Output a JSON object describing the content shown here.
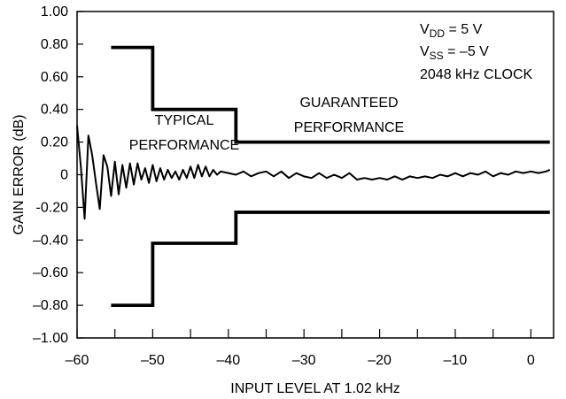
{
  "chart_data": {
    "type": "line",
    "title": "",
    "xlabel": "INPUT LEVEL AT 1.02 kHz",
    "ylabel": "GAIN ERROR (dB)",
    "xlim": [
      -60,
      3
    ],
    "ylim": [
      -1.0,
      1.0
    ],
    "x_ticks": [
      -60,
      -50,
      -40,
      -30,
      -20,
      -10,
      0
    ],
    "x_tick_labels": [
      "–60",
      "–50",
      "–40",
      "–30",
      "–20",
      "–10",
      "0"
    ],
    "x_minor_ticks": [
      -55,
      -45,
      -35,
      -25,
      -15,
      -5
    ],
    "y_ticks": [
      1.0,
      0.8,
      0.6,
      0.4,
      0.2,
      0,
      -0.2,
      -0.4,
      -0.6,
      -0.8,
      -1.0
    ],
    "y_tick_labels": [
      "1.00",
      "0.80",
      "0.60",
      "0.40",
      "0.20",
      "0",
      "-0.20",
      "–0.40",
      "–0.60",
      "–0.80",
      "–1.00"
    ],
    "grid": false,
    "series": [
      {
        "values": [
          [
            -60,
            0.3
          ],
          [
            -59.5,
            0.05
          ],
          [
            -59,
            -0.27
          ],
          [
            -58.5,
            0.24
          ],
          [
            -58,
            0.12
          ],
          [
            -57.5,
            -0.05
          ],
          [
            -57,
            -0.21
          ],
          [
            -56.5,
            0.12
          ],
          [
            -56,
            0.05
          ],
          [
            -55.5,
            -0.13
          ],
          [
            -55,
            0.08
          ],
          [
            -54.5,
            -0.12
          ],
          [
            -54,
            0.06
          ],
          [
            -53.5,
            -0.08
          ],
          [
            -53,
            0.07
          ],
          [
            -52.5,
            -0.06
          ],
          [
            -52,
            0.07
          ],
          [
            -51.5,
            -0.03
          ],
          [
            -51,
            0.04
          ],
          [
            -50.5,
            -0.05
          ],
          [
            -50,
            0.06
          ],
          [
            -49.5,
            -0.04
          ],
          [
            -49,
            0.04
          ],
          [
            -48.5,
            -0.03
          ],
          [
            -48,
            0.03
          ],
          [
            -47.5,
            -0.02
          ],
          [
            -47,
            0.02
          ],
          [
            -46.5,
            -0.03
          ],
          [
            -46,
            0.03
          ],
          [
            -45.5,
            -0.02
          ],
          [
            -45,
            0.05
          ],
          [
            -44.5,
            -0.02
          ],
          [
            -44,
            0.06
          ],
          [
            -43.5,
            -0.01
          ],
          [
            -43,
            0.05
          ],
          [
            -42.5,
            -0.01
          ],
          [
            -42,
            0.03
          ],
          [
            -41.5,
            0.0
          ],
          [
            -41,
            0.02
          ],
          [
            -40,
            0.01
          ],
          [
            -39,
            0.0
          ],
          [
            -38,
            0.02
          ],
          [
            -37,
            -0.01
          ],
          [
            -36,
            0.01
          ],
          [
            -35,
            0.02
          ],
          [
            -34,
            -0.01
          ],
          [
            -33,
            0.02
          ],
          [
            -32,
            -0.02
          ],
          [
            -31,
            0.01
          ],
          [
            -30,
            -0.01
          ],
          [
            -29,
            -0.02
          ],
          [
            -28,
            0.01
          ],
          [
            -27,
            -0.02
          ],
          [
            -26,
            0.0
          ],
          [
            -25,
            -0.02
          ],
          [
            -24,
            0.01
          ],
          [
            -23,
            -0.03
          ],
          [
            -22,
            -0.02
          ],
          [
            -21,
            -0.03
          ],
          [
            -20,
            -0.02
          ],
          [
            -19,
            -0.03
          ],
          [
            -18,
            -0.01
          ],
          [
            -17,
            -0.03
          ],
          [
            -16,
            -0.01
          ],
          [
            -15,
            -0.02
          ],
          [
            -14,
            -0.01
          ],
          [
            -13,
            -0.02
          ],
          [
            -12,
            0.0
          ],
          [
            -11,
            -0.01
          ],
          [
            -10,
            0.01
          ],
          [
            -9,
            -0.01
          ],
          [
            -8,
            0.01
          ],
          [
            -7,
            0.0
          ],
          [
            -6,
            0.02
          ],
          [
            -5,
            -0.01
          ],
          [
            -4,
            0.01
          ],
          [
            -3,
            0.0
          ],
          [
            -2,
            0.02
          ],
          [
            -1,
            0.01
          ],
          [
            0,
            0.02
          ],
          [
            1,
            0.01
          ],
          [
            2,
            0.02
          ],
          [
            2.5,
            0.03
          ]
        ]
      },
      {
        "values": [
          [
            -55.5,
            0.78
          ],
          [
            -50,
            0.78
          ],
          [
            -50,
            0.4
          ],
          [
            -39,
            0.4
          ],
          [
            -39,
            0.2
          ],
          [
            2.5,
            0.2
          ]
        ]
      },
      {
        "values": [
          [
            -55.5,
            -0.8
          ],
          [
            -50,
            -0.8
          ],
          [
            -50,
            -0.42
          ],
          [
            -39,
            -0.42
          ],
          [
            -39,
            -0.23
          ],
          [
            2.5,
            -0.23
          ]
        ]
      }
    ],
    "annotations": {
      "typical_line1": "TYPICAL",
      "typical_line2": "PERFORMANCE",
      "guaranteed_line1": "GUARANTEED",
      "guaranteed_line2": "PERFORMANCE",
      "vdd_main": "V",
      "vdd_sub": "DD",
      "vdd_rest": " = 5 V",
      "vss_main": "V",
      "vss_sub": "SS",
      "vss_rest": " = –5 V",
      "clock": "2048 kHz CLOCK"
    },
    "colors": {
      "line": "#000000",
      "background": "#ffffff"
    }
  }
}
